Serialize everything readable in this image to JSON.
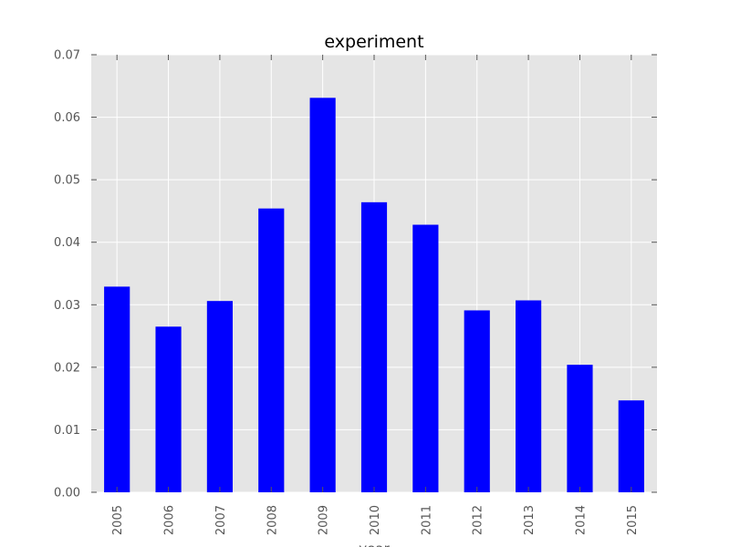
{
  "chart_data": {
    "type": "bar",
    "title": "experiment",
    "xlabel": "year",
    "ylabel": "",
    "categories": [
      "2005",
      "2006",
      "2007",
      "2008",
      "2009",
      "2010",
      "2011",
      "2012",
      "2013",
      "2014",
      "2015"
    ],
    "values": [
      0.0329,
      0.0265,
      0.0306,
      0.0454,
      0.0631,
      0.0464,
      0.0428,
      0.0291,
      0.0307,
      0.0204,
      0.0147
    ],
    "ylim": [
      0,
      0.07
    ],
    "yticks": [
      "0.00",
      "0.01",
      "0.02",
      "0.03",
      "0.04",
      "0.05",
      "0.06",
      "0.07"
    ],
    "grid": true,
    "legend": "none",
    "bar_color": "#0000ff",
    "plot_background": "#e5e5e5",
    "grid_color": "#ffffff"
  }
}
